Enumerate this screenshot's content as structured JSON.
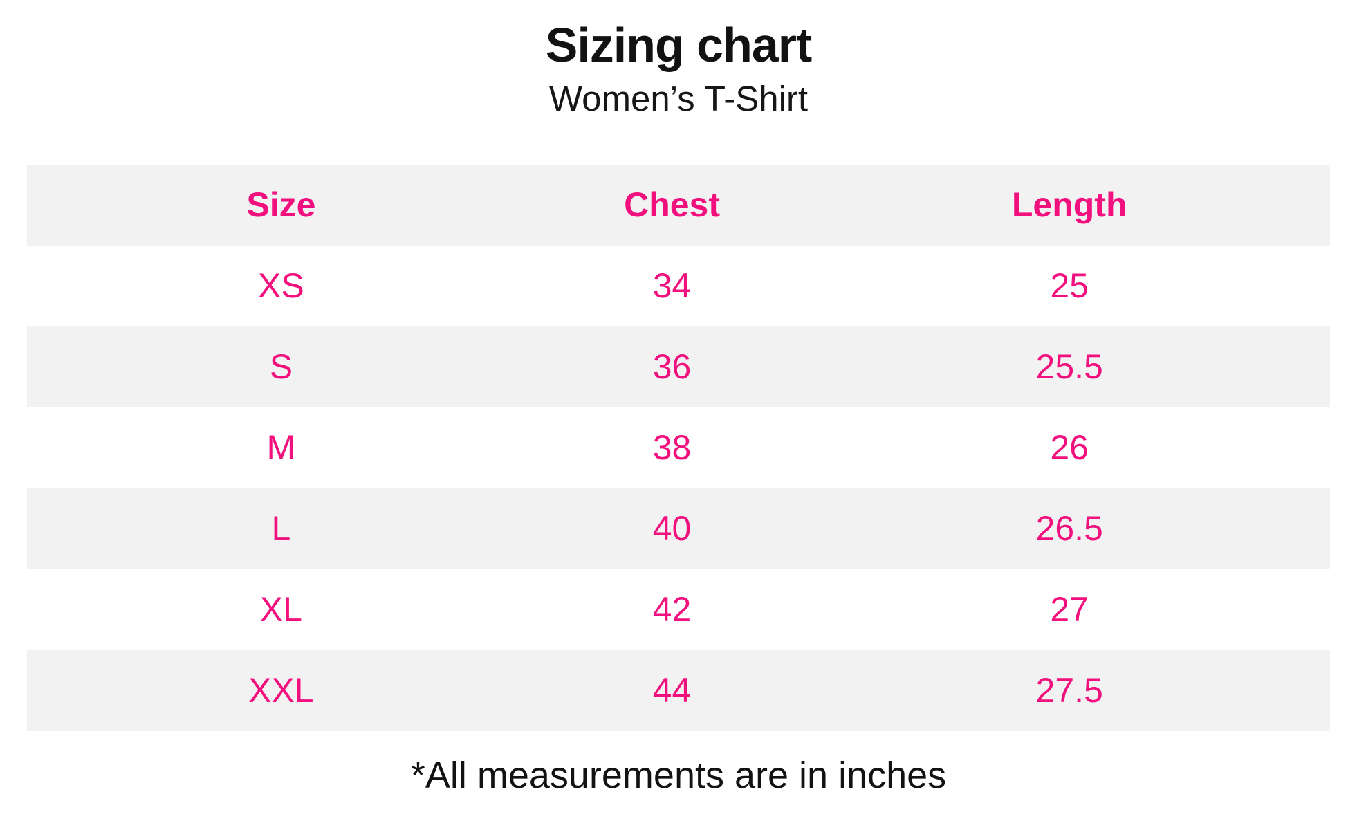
{
  "header": {
    "title": "Sizing chart",
    "subtitle": "Women’s T-Shirt"
  },
  "table": {
    "columns": [
      "Size",
      "Chest",
      "Length"
    ],
    "rows": [
      [
        "XS",
        "34",
        "25"
      ],
      [
        "S",
        "36",
        "25.5"
      ],
      [
        "M",
        "38",
        "26"
      ],
      [
        "L",
        "40",
        "26.5"
      ],
      [
        "XL",
        "42",
        "27"
      ],
      [
        "XXL",
        "44",
        "27.5"
      ]
    ]
  },
  "footer": {
    "note": "*All measurements are in inches"
  },
  "colors": {
    "accent_pink": "#f1107d",
    "row_alt_gray": "#f2f2f3",
    "text_black": "#121212",
    "background": "#ffffff"
  },
  "chart_data": {
    "type": "table",
    "title": "Sizing chart",
    "subtitle": "Women’s T-Shirt",
    "columns": [
      "Size",
      "Chest",
      "Length"
    ],
    "rows": [
      {
        "size": "XS",
        "chest": 34,
        "length": 25
      },
      {
        "size": "S",
        "chest": 36,
        "length": 25.5
      },
      {
        "size": "M",
        "chest": 38,
        "length": 26
      },
      {
        "size": "L",
        "chest": 40,
        "length": 26.5
      },
      {
        "size": "XL",
        "chest": 42,
        "length": 27
      },
      {
        "size": "XXL",
        "chest": 44,
        "length": 27.5
      }
    ],
    "footnote": "*All measurements are in inches",
    "units": "inches",
    "layout_hints": {
      "header_row_shaded": true,
      "alternating_row_shading": "odd data rows shaded gray",
      "text_color": "pink for all table text, black for titles and footnote"
    }
  }
}
